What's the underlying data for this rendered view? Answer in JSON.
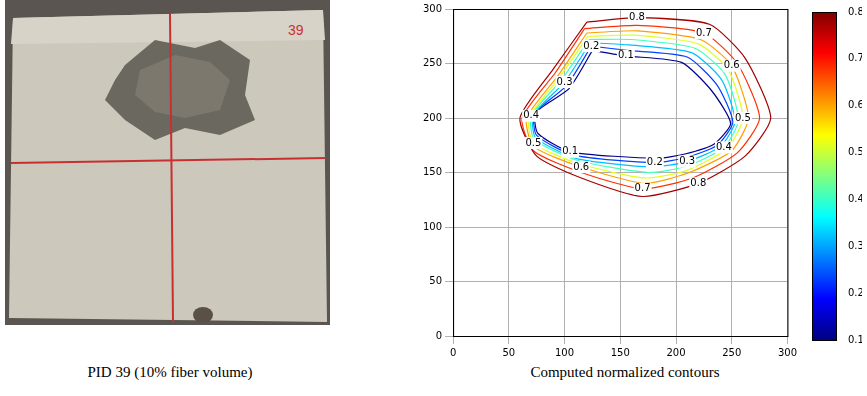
{
  "photo": {
    "label": "39",
    "caption": "PID 39 (10% fiber volume)"
  },
  "chart_data": {
    "type": "line",
    "caption": "Computed normalized contours",
    "xlim": [
      0,
      300
    ],
    "ylim": [
      0,
      300
    ],
    "xticks": [
      0,
      50,
      100,
      150,
      200,
      250,
      300
    ],
    "yticks": [
      0,
      50,
      100,
      150,
      200,
      250,
      300
    ],
    "grid": true,
    "data_labels": true,
    "colorbar": {
      "range": [
        0.1,
        0.8
      ],
      "ticks": [
        0.1,
        0.2,
        0.3,
        0.4,
        0.5,
        0.6,
        0.7,
        0.8
      ]
    },
    "series": [
      {
        "level": 0.8,
        "color": "#a50000",
        "x": [
          120,
          165,
          230,
          262,
          285,
          262,
          220,
          170,
          115,
          75,
          60,
          90,
          120
        ],
        "values": [
          288,
          292,
          286,
          255,
          200,
          165,
          140,
          128,
          145,
          165,
          200,
          245,
          288
        ]
      },
      {
        "level": 0.7,
        "color": "#ff3000",
        "x": [
          118,
          165,
          225,
          255,
          275,
          255,
          215,
          170,
          115,
          72,
          62,
          92,
          118
        ],
        "values": [
          282,
          285,
          278,
          250,
          200,
          168,
          145,
          135,
          150,
          170,
          200,
          242,
          282
        ]
      },
      {
        "level": 0.6,
        "color": "#ff9f00",
        "x": [
          120,
          165,
          222,
          250,
          265,
          250,
          212,
          172,
          115,
          72,
          66,
          95,
          120
        ],
        "values": [
          278,
          280,
          272,
          248,
          200,
          170,
          150,
          140,
          155,
          174,
          200,
          240,
          278
        ]
      },
      {
        "level": 0.5,
        "color": "#dfff20",
        "x": [
          121,
          163,
          220,
          247,
          260,
          246,
          210,
          172,
          113,
          72,
          68,
          96,
          121
        ],
        "values": [
          275,
          276,
          268,
          244,
          200,
          172,
          152,
          145,
          158,
          177,
          200,
          238,
          275
        ]
      },
      {
        "level": 0.4,
        "color": "#40ffbf",
        "x": [
          122,
          160,
          217,
          244,
          256,
          243,
          210,
          175,
          112,
          73,
          70,
          98,
          122
        ],
        "values": [
          272,
          272,
          264,
          240,
          198,
          173,
          156,
          150,
          161,
          180,
          202,
          236,
          272
        ]
      },
      {
        "level": 0.3,
        "color": "#00bfff",
        "x": [
          123,
          158,
          214,
          241,
          253,
          240,
          210,
          178,
          110,
          74,
          72,
          100,
          123
        ],
        "values": [
          269,
          267,
          260,
          235,
          197,
          174,
          160,
          155,
          163,
          182,
          203,
          233,
          269
        ]
      },
      {
        "level": 0.2,
        "color": "#0040ff",
        "x": [
          124,
          156,
          210,
          237,
          251,
          237,
          210,
          181,
          108,
          75,
          73,
          102,
          124
        ],
        "values": [
          266,
          262,
          256,
          230,
          196,
          175,
          164,
          159,
          166,
          184,
          204,
          230,
          266
        ]
      },
      {
        "level": 0.1,
        "color": "#000090",
        "x": [
          125,
          155,
          205,
          232,
          249,
          234,
          208,
          184,
          105,
          76,
          74,
          104,
          125
        ],
        "values": [
          262,
          257,
          251,
          225,
          195,
          176,
          167,
          163,
          169,
          186,
          205,
          227,
          262
        ]
      }
    ]
  }
}
